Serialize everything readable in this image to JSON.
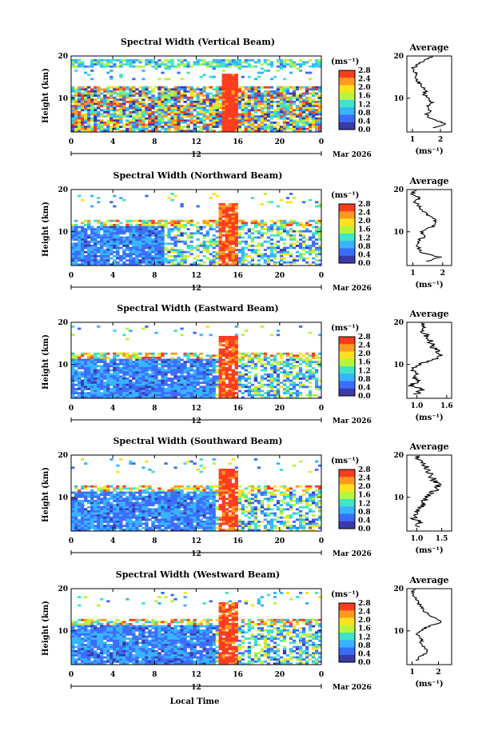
{
  "figure": {
    "xlabel": "Local Time",
    "ylabel": "Height (km)",
    "date_label": "Mar 2026",
    "date_mid_tick": "12",
    "x_ticks": [
      "0",
      "4",
      "8",
      "12",
      "16",
      "20",
      "0"
    ],
    "y_ticks": [
      "20",
      "10"
    ],
    "unit": "(ms⁻¹)",
    "average_title": "Average",
    "average_xlabel": "(ms⁻¹)",
    "colorbar": {
      "labels": [
        "2.8",
        "2.4",
        "2.0",
        "1.6",
        "1.2",
        "0.8",
        "0.4",
        "0.0"
      ],
      "colors": [
        "#ff3b1e",
        "#ff9a1e",
        "#ffe11e",
        "#b6f53c",
        "#3ee5c8",
        "#36b4ff",
        "#3c6cff",
        "#3a3aa8"
      ]
    }
  },
  "chart_data": [
    {
      "type": "heatmap",
      "title": "Spectral Width (Vertical Beam)",
      "xlabel": "",
      "ylabel": "Height (km)",
      "xlim": [
        0,
        24
      ],
      "ylim": [
        2,
        20
      ],
      "value_range": [
        0.0,
        2.8
      ],
      "average_profile": {
        "xlabel": "(ms⁻¹)",
        "ticks": [
          "1",
          "2"
        ],
        "xlim": [
          0.8,
          2.4
        ],
        "heights": [
          3,
          4,
          5,
          6,
          7,
          8,
          9,
          10,
          11,
          12,
          13,
          14,
          15,
          16,
          17,
          18,
          19,
          20
        ],
        "values": [
          1.8,
          2.2,
          1.7,
          1.5,
          1.6,
          1.5,
          1.7,
          1.6,
          1.4,
          1.5,
          1.3,
          1.2,
          1.1,
          1.1,
          1.0,
          1.2,
          1.4,
          1.8
        ]
      }
    },
    {
      "type": "heatmap",
      "title": "Spectral Width (Northward Beam)",
      "xlabel": "",
      "ylabel": "Height (km)",
      "xlim": [
        0,
        24
      ],
      "ylim": [
        2,
        20
      ],
      "value_range": [
        0.0,
        2.8
      ],
      "average_profile": {
        "xlabel": "(ms⁻¹)",
        "ticks": [
          "1",
          "2"
        ],
        "xlim": [
          0.8,
          2.3
        ],
        "heights": [
          3,
          4,
          5,
          6,
          7,
          8,
          9,
          10,
          11,
          12,
          13,
          14,
          15,
          16,
          17,
          18,
          19,
          20
        ],
        "values": [
          1.5,
          1.9,
          1.3,
          1.2,
          1.1,
          1.2,
          1.4,
          1.3,
          1.6,
          1.8,
          1.7,
          1.5,
          1.3,
          1.2,
          1.1,
          1.2,
          1.0,
          1.1
        ]
      }
    },
    {
      "type": "heatmap",
      "title": "Spectral Width (Eastward Beam)",
      "xlabel": "",
      "ylabel": "Height (km)",
      "xlim": [
        0,
        24
      ],
      "ylim": [
        2,
        20
      ],
      "value_range": [
        0.0,
        2.8
      ],
      "average_profile": {
        "xlabel": "(ms⁻¹)",
        "ticks": [
          "1.0",
          "1.6"
        ],
        "xlim": [
          0.8,
          1.7
        ],
        "heights": [
          3,
          4,
          5,
          6,
          7,
          8,
          9,
          10,
          11,
          12,
          13,
          14,
          15,
          16,
          17,
          18,
          19,
          20
        ],
        "values": [
          1.0,
          1.1,
          0.9,
          1.0,
          0.95,
          1.0,
          0.9,
          1.05,
          1.3,
          1.5,
          1.45,
          1.35,
          1.3,
          1.25,
          1.2,
          1.1,
          1.15,
          1.1
        ]
      }
    },
    {
      "type": "heatmap",
      "title": "Spectral Width (Southward Beam)",
      "xlabel": "",
      "ylabel": "Height (km)",
      "xlim": [
        0,
        24
      ],
      "ylim": [
        2,
        20
      ],
      "value_range": [
        0.0,
        2.8
      ],
      "average_profile": {
        "xlabel": "(ms⁻¹)",
        "ticks": [
          "1.0",
          "1.5"
        ],
        "xlim": [
          0.8,
          1.7
        ],
        "heights": [
          3,
          4,
          5,
          6,
          7,
          8,
          9,
          10,
          11,
          12,
          13,
          14,
          15,
          16,
          17,
          18,
          19,
          20
        ],
        "values": [
          1.0,
          1.05,
          0.95,
          1.0,
          1.05,
          1.1,
          1.15,
          1.2,
          1.3,
          1.4,
          1.45,
          1.35,
          1.3,
          1.25,
          1.2,
          1.1,
          1.05,
          1.0
        ]
      }
    },
    {
      "type": "heatmap",
      "title": "Spectral Width (Westward Beam)",
      "xlabel": "Local Time",
      "ylabel": "Height (km)",
      "xlim": [
        0,
        24
      ],
      "ylim": [
        2,
        20
      ],
      "value_range": [
        0.0,
        2.8
      ],
      "average_profile": {
        "xlabel": "(ms⁻¹)",
        "ticks": [
          "1",
          "2"
        ],
        "xlim": [
          0.8,
          2.5
        ],
        "heights": [
          3,
          4,
          5,
          6,
          7,
          8,
          9,
          10,
          11,
          12,
          13,
          14,
          15,
          16,
          17,
          18,
          19,
          20
        ],
        "values": [
          1.2,
          1.3,
          1.6,
          1.5,
          1.3,
          1.4,
          1.2,
          1.3,
          1.6,
          2.1,
          1.9,
          1.6,
          1.4,
          1.3,
          1.2,
          1.1,
          1.0,
          1.1
        ]
      }
    }
  ]
}
